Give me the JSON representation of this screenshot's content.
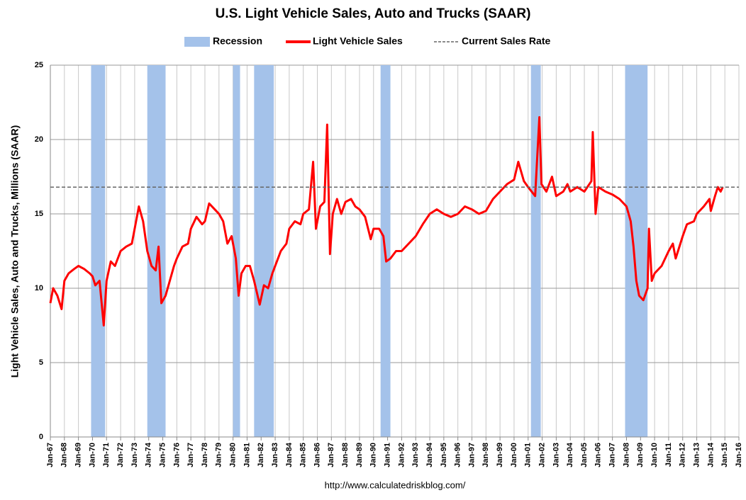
{
  "chart_data": {
    "type": "line",
    "title": "U.S. Light Vehicle Sales, Auto and Trucks (SAAR)",
    "ylabel": "Light Vehicle Sales, Auto and Trucks, Millions (SAAR)",
    "source": "http://www.calculatedriskblog.com/",
    "xlim": [
      1967,
      2016
    ],
    "ylim": [
      0,
      25
    ],
    "yticks": [
      0,
      5,
      10,
      15,
      20,
      25
    ],
    "xticks": [
      {
        "value": 1967,
        "label": "Jan-67"
      },
      {
        "value": 1968,
        "label": "Jan-68"
      },
      {
        "value": 1969,
        "label": "Jan-69"
      },
      {
        "value": 1970,
        "label": "Jan-70"
      },
      {
        "value": 1971,
        "label": "Jan-71"
      },
      {
        "value": 1972,
        "label": "Jan-72"
      },
      {
        "value": 1973,
        "label": "Jan-73"
      },
      {
        "value": 1974,
        "label": "Jan-74"
      },
      {
        "value": 1975,
        "label": "Jan-75"
      },
      {
        "value": 1976,
        "label": "Jan-76"
      },
      {
        "value": 1977,
        "label": "Jan-77"
      },
      {
        "value": 1978,
        "label": "Jan-78"
      },
      {
        "value": 1979,
        "label": "Jan-79"
      },
      {
        "value": 1980,
        "label": "Jan-80"
      },
      {
        "value": 1981,
        "label": "Jan-81"
      },
      {
        "value": 1982,
        "label": "Jan-82"
      },
      {
        "value": 1983,
        "label": "Jan-83"
      },
      {
        "value": 1984,
        "label": "Jan-84"
      },
      {
        "value": 1985,
        "label": "Jan-85"
      },
      {
        "value": 1986,
        "label": "Jan-86"
      },
      {
        "value": 1987,
        "label": "Jan-87"
      },
      {
        "value": 1988,
        "label": "Jan-88"
      },
      {
        "value": 1989,
        "label": "Jan-89"
      },
      {
        "value": 1990,
        "label": "Jan-90"
      },
      {
        "value": 1991,
        "label": "Jan-91"
      },
      {
        "value": 1992,
        "label": "Jan-92"
      },
      {
        "value": 1993,
        "label": "Jan-93"
      },
      {
        "value": 1994,
        "label": "Jan-94"
      },
      {
        "value": 1995,
        "label": "Jan-95"
      },
      {
        "value": 1996,
        "label": "Jan-96"
      },
      {
        "value": 1997,
        "label": "Jan-97"
      },
      {
        "value": 1998,
        "label": "Jan-98"
      },
      {
        "value": 1999,
        "label": "Jan-99"
      },
      {
        "value": 2000,
        "label": "Jan-00"
      },
      {
        "value": 2001,
        "label": "Jan-01"
      },
      {
        "value": 2002,
        "label": "Jan-02"
      },
      {
        "value": 2003,
        "label": "Jan-03"
      },
      {
        "value": 2004,
        "label": "Jan-04"
      },
      {
        "value": 2005,
        "label": "Jan-05"
      },
      {
        "value": 2006,
        "label": "Jan-06"
      },
      {
        "value": 2007,
        "label": "Jan-07"
      },
      {
        "value": 2008,
        "label": "Jan-08"
      },
      {
        "value": 2009,
        "label": "Jan-09"
      },
      {
        "value": 2010,
        "label": "Jan-10"
      },
      {
        "value": 2011,
        "label": "Jan-11"
      },
      {
        "value": 2012,
        "label": "Jan-12"
      },
      {
        "value": 2013,
        "label": "Jan-13"
      },
      {
        "value": 2014,
        "label": "Jan-14"
      },
      {
        "value": 2015,
        "label": "Jan-15"
      },
      {
        "value": 2016,
        "label": "Jan-16"
      }
    ],
    "grid": true,
    "bands": {
      "name": "Recession",
      "color": "#a4c2ea",
      "ranges": [
        [
          1969.9,
          1970.9
        ],
        [
          1973.9,
          1975.2
        ],
        [
          1980.0,
          1980.5
        ],
        [
          1981.5,
          1982.9
        ],
        [
          1990.5,
          1991.2
        ],
        [
          2001.2,
          2001.9
        ],
        [
          2007.9,
          2009.5
        ]
      ]
    },
    "reference_line": {
      "name": "Current Sales Rate",
      "value": 16.8,
      "color": "#666666"
    },
    "series": [
      {
        "name": "Light Vehicle Sales",
        "color": "#ff0000",
        "x": [
          1967.0,
          1967.2,
          1967.5,
          1967.8,
          1968.0,
          1968.3,
          1968.7,
          1969.0,
          1969.4,
          1969.8,
          1970.0,
          1970.2,
          1970.5,
          1970.8,
          1971.0,
          1971.3,
          1971.6,
          1972.0,
          1972.4,
          1972.8,
          1973.0,
          1973.3,
          1973.6,
          1973.9,
          1974.2,
          1974.5,
          1974.7,
          1974.9,
          1975.2,
          1975.5,
          1975.8,
          1976.0,
          1976.4,
          1976.8,
          1977.0,
          1977.4,
          1977.8,
          1978.0,
          1978.3,
          1978.7,
          1979.0,
          1979.3,
          1979.6,
          1979.9,
          1980.2,
          1980.4,
          1980.6,
          1980.9,
          1981.2,
          1981.5,
          1981.9,
          1982.2,
          1982.5,
          1982.8,
          1983.0,
          1983.4,
          1983.8,
          1984.0,
          1984.4,
          1984.8,
          1985.0,
          1985.4,
          1985.7,
          1985.9,
          1986.2,
          1986.5,
          1986.7,
          1986.9,
          1987.1,
          1987.4,
          1987.7,
          1988.0,
          1988.4,
          1988.7,
          1989.0,
          1989.4,
          1989.8,
          1990.0,
          1990.4,
          1990.7,
          1990.9,
          1991.2,
          1991.6,
          1992.0,
          1992.5,
          1993.0,
          1993.5,
          1994.0,
          1994.5,
          1995.0,
          1995.5,
          1996.0,
          1996.5,
          1997.0,
          1997.5,
          1998.0,
          1998.5,
          1999.0,
          1999.5,
          2000.0,
          2000.3,
          2000.7,
          2001.0,
          2001.5,
          2001.8,
          2001.95,
          2002.3,
          2002.7,
          2003.0,
          2003.5,
          2003.8,
          2004.0,
          2004.5,
          2005.0,
          2005.5,
          2005.6,
          2005.8,
          2006.0,
          2006.5,
          2007.0,
          2007.5,
          2008.0,
          2008.3,
          2008.5,
          2008.7,
          2008.9,
          2009.2,
          2009.5,
          2009.6,
          2009.8,
          2010.0,
          2010.5,
          2011.0,
          2011.3,
          2011.5,
          2012.0,
          2012.3,
          2012.8,
          2013.0,
          2013.5,
          2013.9,
          2014.0,
          2014.3,
          2014.5,
          2014.7,
          2014.85
        ],
        "values": [
          9.0,
          10.0,
          9.5,
          8.6,
          10.5,
          11.0,
          11.3,
          11.5,
          11.3,
          11.0,
          10.8,
          10.2,
          10.5,
          7.5,
          10.5,
          11.8,
          11.5,
          12.5,
          12.8,
          13.0,
          14.0,
          15.5,
          14.5,
          12.5,
          11.5,
          11.2,
          12.8,
          9.0,
          9.5,
          10.5,
          11.5,
          12.0,
          12.8,
          13.0,
          14.0,
          14.8,
          14.3,
          14.5,
          15.7,
          15.3,
          15.0,
          14.5,
          13.0,
          13.5,
          12.0,
          9.5,
          11.0,
          11.5,
          11.5,
          10.5,
          8.9,
          10.2,
          10.0,
          11.0,
          11.5,
          12.5,
          13.0,
          14.0,
          14.5,
          14.3,
          15.0,
          15.3,
          18.5,
          14.0,
          15.5,
          15.8,
          21.0,
          12.3,
          15.0,
          16.0,
          15.0,
          15.8,
          16.0,
          15.5,
          15.3,
          14.8,
          13.3,
          14.0,
          14.0,
          13.5,
          11.8,
          12.0,
          12.5,
          12.5,
          13.0,
          13.5,
          14.3,
          15.0,
          15.3,
          15.0,
          14.8,
          15.0,
          15.5,
          15.3,
          15.0,
          15.2,
          16.0,
          16.5,
          17.0,
          17.3,
          18.5,
          17.2,
          16.8,
          16.2,
          21.5,
          17.0,
          16.5,
          17.5,
          16.2,
          16.5,
          17.0,
          16.5,
          16.8,
          16.5,
          17.2,
          20.5,
          15.0,
          16.8,
          16.5,
          16.3,
          16.0,
          15.5,
          14.5,
          12.8,
          10.5,
          9.5,
          9.2,
          10.0,
          14.0,
          10.5,
          11.0,
          11.5,
          12.5,
          13.0,
          12.0,
          13.5,
          14.3,
          14.5,
          15.0,
          15.5,
          16.0,
          15.2,
          16.2,
          16.8,
          16.5,
          16.8
        ]
      }
    ]
  }
}
